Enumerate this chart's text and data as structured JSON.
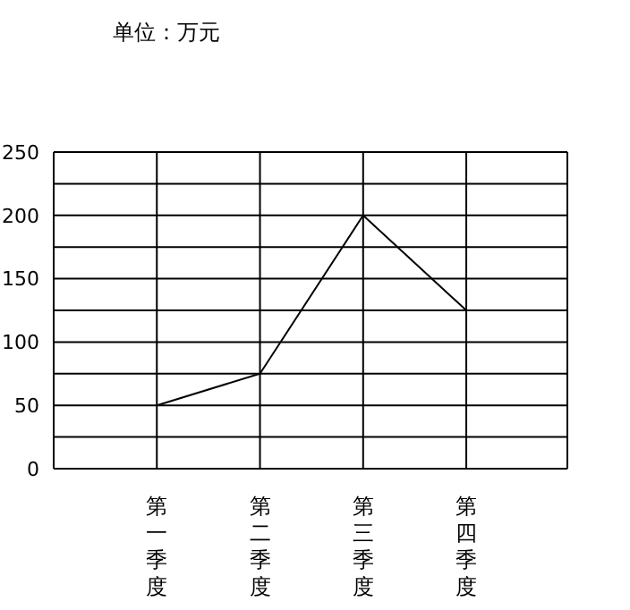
{
  "chart_data": {
    "type": "line",
    "annotations": [
      "单位：万元"
    ],
    "categories": [
      "第一季度",
      "第二季度",
      "第三季度",
      "第四季度"
    ],
    "series": [
      {
        "color": "#000000",
        "values": [
          50,
          75,
          200,
          125
        ]
      }
    ],
    "ylim": [
      0,
      250
    ],
    "yticks": [
      0,
      {
        "value": 25,
        "label": null
      },
      50,
      {
        "value": 75,
        "label": null
      },
      100,
      {
        "value": 125,
        "label": null
      },
      150,
      {
        "value": 175,
        "label": null
      },
      200,
      {
        "value": 225,
        "label": null
      },
      250
    ],
    "grid": true,
    "legend": false,
    "marker": "none",
    "line_style": "solid"
  }
}
